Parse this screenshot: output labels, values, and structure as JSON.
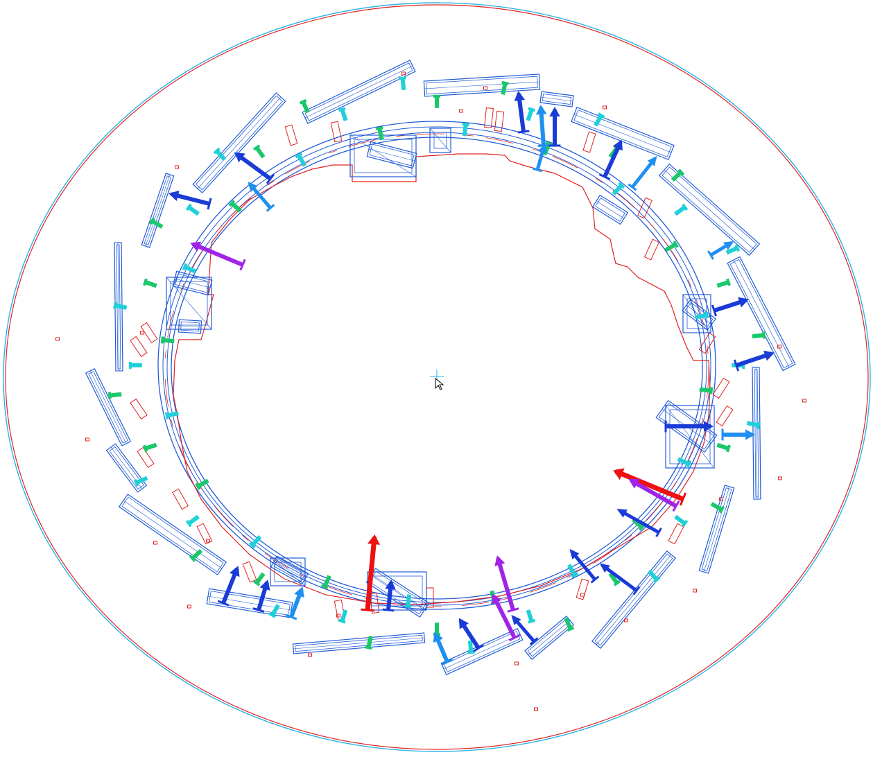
{
  "diagram": {
    "kind": "cad-wireframe-top-view",
    "colors": {
      "background": "#ffffff",
      "outline_blue": "#1f5bd8",
      "outline_cyan": "#2bb3e8",
      "outline_red": "#e02020",
      "marker_green": "#19c86a",
      "marker_cyan": "#20d0d8",
      "arrow_blue": "#1a3bd6",
      "arrow_skyblue": "#1f8ff0",
      "arrow_violet": "#a024e6",
      "arrow_red": "#ee1111"
    },
    "icons": [
      "origin-crosshair-icon",
      "cursor-arrow-icon"
    ],
    "counts": {
      "outer_segments": 27,
      "small_red_markers": 22,
      "thick_arrows": 30,
      "small_green_markers": 60
    }
  }
}
